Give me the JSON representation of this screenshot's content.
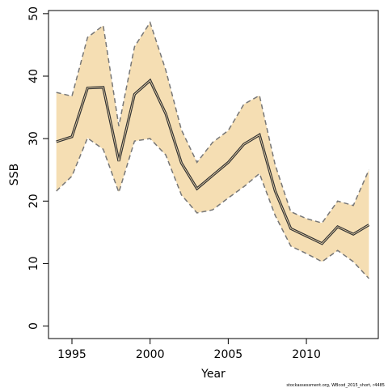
{
  "chart_data": {
    "type": "area",
    "xlabel": "Year",
    "ylabel": "SSB",
    "xlim": [
      1993.5,
      2014.6
    ],
    "ylim": [
      -2,
      50.5
    ],
    "xticks": [
      1995,
      2000,
      2005,
      2010
    ],
    "yticks": [
      0,
      10,
      20,
      30,
      40,
      50
    ],
    "grid": false,
    "colors": {
      "band": "#f5deb3",
      "estimate": "#333333",
      "bounds": "#777777",
      "axis": "#000000"
    },
    "x": [
      1994,
      1995,
      1996,
      1997,
      1998,
      1999,
      2000,
      2001,
      2002,
      2003,
      2004,
      2005,
      2006,
      2007,
      2008,
      2009,
      2010,
      2011,
      2012,
      2013,
      2014
    ],
    "series": [
      {
        "role": "estimate",
        "values": [
          29.5,
          30.3,
          38.1,
          38.2,
          26.4,
          37.1,
          39.3,
          34.0,
          26.1,
          22.0,
          24.1,
          26.2,
          29.1,
          30.6,
          21.6,
          15.6,
          14.4,
          13.2,
          15.9,
          14.7,
          16.2
        ]
      },
      {
        "role": "upper",
        "values": [
          37.4,
          36.8,
          46.2,
          48.1,
          32.0,
          44.7,
          48.6,
          41.0,
          31.4,
          26.2,
          29.4,
          31.3,
          35.5,
          36.9,
          25.8,
          18.3,
          17.2,
          16.5,
          20.0,
          19.3,
          25.0
        ]
      },
      {
        "role": "lower",
        "values": [
          21.6,
          24.0,
          30.1,
          28.3,
          21.4,
          29.6,
          30.0,
          27.4,
          21.0,
          18.1,
          18.6,
          20.5,
          22.3,
          24.4,
          17.7,
          12.8,
          11.6,
          10.3,
          12.1,
          10.3,
          7.6
        ]
      }
    ]
  },
  "footer": {
    "credit": "stockassessment.org, WBcod_2015_short, r4485"
  }
}
